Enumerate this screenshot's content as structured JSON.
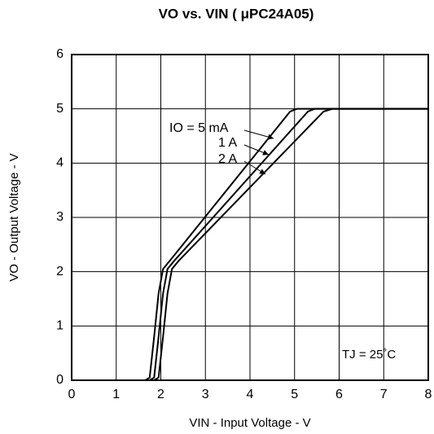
{
  "chart_data": {
    "type": "line",
    "title": "VO vs. VIN ( μPC24A05)",
    "xlabel": "VIN - Input Voltage - V",
    "ylabel": "VO - Output Voltage - V",
    "annotations": [
      "TJ = 25˚C"
    ],
    "xlim": [
      0,
      8
    ],
    "xticks": [
      0,
      1,
      2,
      3,
      4,
      5,
      6,
      7,
      8
    ],
    "ylim": [
      0,
      6
    ],
    "yticks": [
      0,
      1,
      2,
      3,
      4,
      5,
      6
    ],
    "grid": true,
    "series": [
      {
        "name": "IO = 5 mA",
        "color": "#000000",
        "x": [
          0,
          1.65,
          1.75,
          1.85,
          1.95,
          2.05,
          2.2,
          4.9,
          5.05,
          8
        ],
        "values": [
          0,
          0,
          0.05,
          0.8,
          1.6,
          2.05,
          2.2,
          4.95,
          5,
          5
        ]
      },
      {
        "name": "1 A",
        "color": "#000000",
        "x": [
          0,
          1.75,
          1.85,
          1.95,
          2.05,
          2.15,
          2.3,
          5.3,
          5.45,
          8
        ],
        "values": [
          0,
          0,
          0.05,
          0.8,
          1.6,
          2.05,
          2.2,
          4.95,
          5,
          5
        ]
      },
      {
        "name": "2 A",
        "color": "#000000",
        "x": [
          0,
          1.85,
          1.95,
          2.05,
          2.15,
          2.25,
          2.4,
          5.65,
          5.85,
          8
        ],
        "values": [
          0,
          0,
          0.05,
          0.8,
          1.6,
          2.05,
          2.2,
          4.95,
          5,
          5
        ]
      }
    ]
  }
}
